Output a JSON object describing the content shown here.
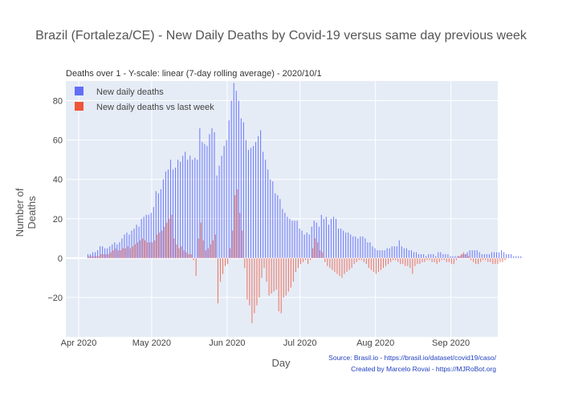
{
  "chart_data": {
    "type": "bar",
    "title": "Brazil (Fortaleza/CE) - New Daily Deaths by Covid-19 versus same day previous week",
    "subtitle": "Deaths over 1 - Y-scale: linear (7-day rolling average) - 2020/10/1",
    "xlabel": "Day",
    "ylabel": "Number of Deaths",
    "ylim": [
      -40,
      90
    ],
    "yticks": [
      -20,
      0,
      20,
      40,
      60,
      80
    ],
    "xticks": [
      "Apr 2020",
      "May 2020",
      "Jun 2020",
      "Jul 2020",
      "Aug 2020",
      "Sep 2020"
    ],
    "grid": true,
    "legend_position": "top-left",
    "x_start_label": "2020-04-05",
    "series": [
      {
        "name": "New daily deaths",
        "color": "#636efa",
        "values": [
          2,
          2,
          3,
          3,
          4,
          6,
          6,
          5,
          5,
          6,
          7,
          8,
          7,
          8,
          10,
          12,
          13,
          12,
          14,
          15,
          17,
          16,
          20,
          21,
          22,
          22,
          23,
          26,
          34,
          33,
          35,
          40,
          44,
          45,
          50,
          45,
          46,
          50,
          49,
          52,
          54,
          50,
          52,
          50,
          51,
          50,
          66,
          59,
          58,
          57,
          63,
          66,
          64,
          42,
          47,
          52,
          57,
          60,
          70,
          80,
          89,
          85,
          80,
          71,
          69,
          60,
          55,
          56,
          57,
          59,
          62,
          65,
          54,
          50,
          45,
          40,
          39,
          33,
          32,
          30,
          25,
          23,
          21,
          20,
          19,
          19,
          19,
          15,
          14,
          12,
          13,
          12,
          16,
          19,
          18,
          16,
          22,
          20,
          21,
          17,
          20,
          21,
          20,
          15,
          15,
          14,
          13,
          13,
          12,
          11,
          11,
          10,
          11,
          11,
          10,
          8,
          8,
          6,
          5,
          4,
          4,
          4,
          4,
          5,
          5,
          6,
          6,
          6,
          9,
          6,
          5,
          5,
          4,
          4,
          3,
          3,
          2,
          2,
          2,
          1,
          2,
          2,
          2,
          1,
          3,
          3,
          2,
          2,
          2,
          1,
          1,
          1,
          1,
          1,
          2,
          2,
          3,
          4,
          4,
          4,
          4,
          3,
          2,
          2,
          2,
          2,
          3,
          3,
          3,
          3,
          4,
          3,
          2,
          2,
          2,
          1,
          1,
          1,
          1
        ]
      },
      {
        "name": "New daily deaths vs last week",
        "color": "#ef553b",
        "values": [
          1,
          1,
          1,
          1,
          1,
          2,
          2,
          2,
          2,
          3,
          4,
          5,
          4,
          4,
          5,
          5,
          6,
          5,
          6,
          7,
          8,
          9,
          10,
          9,
          8,
          8,
          8,
          9,
          12,
          13,
          14,
          16,
          18,
          20,
          22,
          10,
          7,
          5,
          6,
          4,
          3,
          2,
          2,
          -1,
          -9,
          10,
          18,
          9,
          4,
          5,
          7,
          9,
          12,
          -23,
          -12,
          -8,
          -4,
          -3,
          5,
          14,
          32,
          35,
          23,
          14,
          -5,
          -21,
          -24,
          -33,
          -28,
          -24,
          -20,
          -10,
          -5,
          -12,
          -19,
          -18,
          -17,
          -16,
          -27,
          -28,
          -20,
          -19,
          -17,
          -15,
          -12,
          -7,
          -5,
          -3,
          -2,
          -1,
          -3,
          -1,
          5,
          10,
          8,
          4,
          3,
          -2,
          -4,
          -5,
          -6,
          -7,
          -8,
          -9,
          -10,
          -8,
          -7,
          -6,
          -5,
          -3,
          -2,
          -1,
          -1,
          -2,
          -3,
          -5,
          -6,
          -7,
          -8,
          -7,
          -6,
          -5,
          -4,
          -3,
          -2,
          -1,
          -1,
          -2,
          -3,
          -3,
          -4,
          -4,
          -5,
          -8,
          -4,
          -3,
          -3,
          -2,
          -2,
          -1,
          -1,
          -2,
          -2,
          -3,
          -2,
          -1,
          -1,
          -2,
          -2,
          -3,
          -3,
          -1,
          1,
          2,
          3,
          2,
          1,
          -1,
          -2,
          -3,
          -3,
          -2,
          -1,
          -1,
          -2,
          -2,
          -3,
          -3,
          -3,
          -2,
          -2,
          -1
        ]
      }
    ]
  },
  "footer": {
    "source": "Source: Brasil.io - https://brasil.io/dataset/covid19/caso/",
    "credit": "Created by Marcelo Rovai - https://MJRoBot.org"
  }
}
